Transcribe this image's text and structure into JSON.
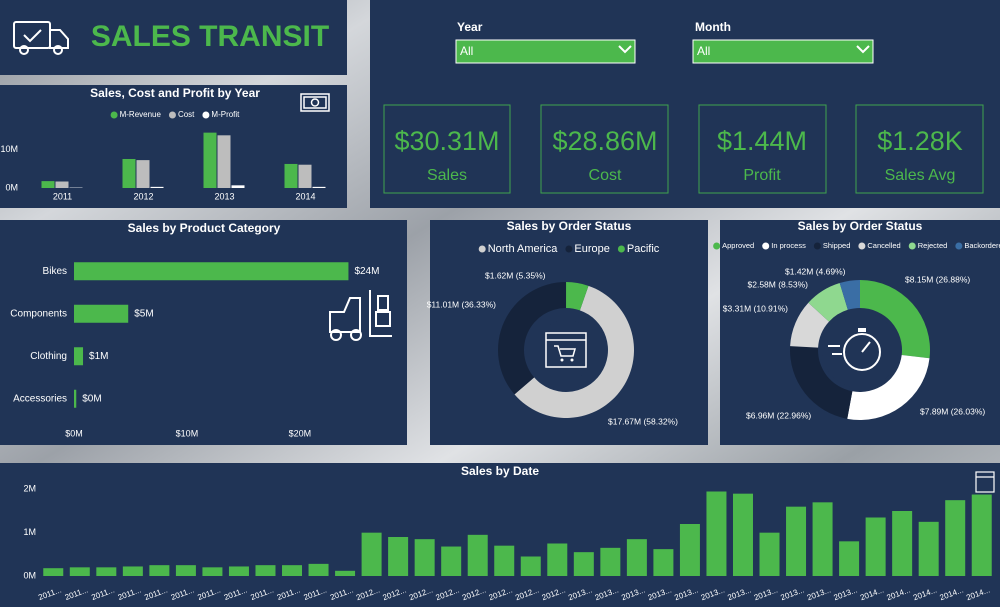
{
  "header": {
    "title": "SALES TRANSIT"
  },
  "filters": [
    {
      "label": "Year",
      "value": "All"
    },
    {
      "label": "Month",
      "value": "All"
    }
  ],
  "kpis": [
    {
      "value": "$30.31M",
      "label": "Sales"
    },
    {
      "value": "$28.86M",
      "label": "Cost"
    },
    {
      "value": "$1.44M",
      "label": "Profit"
    },
    {
      "value": "$1.28K",
      "label": "Sales Avg"
    }
  ],
  "chart_data": [
    {
      "type": "bar",
      "title": "Sales, Cost and Profit by Year",
      "categories": [
        "2011",
        "2012",
        "2013",
        "2014"
      ],
      "series": [
        {
          "name": "M-Revenue",
          "color": "#4cb84c",
          "values": [
            1.8,
            7.6,
            14.5,
            6.3
          ]
        },
        {
          "name": "Cost",
          "color": "#bdbdbd",
          "values": [
            1.7,
            7.3,
            13.8,
            6.1
          ]
        },
        {
          "name": "M-Profit",
          "color": "#ffffff",
          "values": [
            0.1,
            0.3,
            0.7,
            0.3
          ]
        }
      ],
      "ylim": [
        0,
        16.5
      ],
      "yticks": [
        {
          "value": 0,
          "label": "0M"
        },
        {
          "value": 10,
          "label": "10M"
        }
      ],
      "legend": "top"
    },
    {
      "type": "hbar",
      "title": "Sales by Product Category",
      "categories": [
        "Bikes",
        "Components",
        "Clothing",
        "Accessories"
      ],
      "values": [
        24.3,
        4.8,
        0.8,
        0.2
      ],
      "value_labels": [
        "$24M",
        "$5M",
        "$1M",
        "$0M"
      ],
      "color": "#4cb84c",
      "xlim": [
        0,
        25.5
      ],
      "xticks": [
        {
          "value": 0,
          "label": "$0M"
        },
        {
          "value": 10,
          "label": "$10M"
        },
        {
          "value": 20,
          "label": "$20M"
        }
      ]
    },
    {
      "type": "donut",
      "title": "Sales by Order Status",
      "categories": [
        "North America",
        "Europe",
        "Pacific"
      ],
      "values": [
        17.67,
        11.01,
        1.62
      ],
      "value_labels": [
        "$17.67M (58.32%)",
        "$11.01M (36.33%)",
        "$1.62M (5.35%)"
      ],
      "colors": [
        "#d0d0d0",
        "#15233b",
        "#4cb84c"
      ],
      "legend": "top"
    },
    {
      "type": "donut",
      "title": "Sales by Order Status",
      "categories": [
        "Approved",
        "In process",
        "Shipped",
        "Cancelled",
        "Rejected",
        "Backordered"
      ],
      "values": [
        8.15,
        7.89,
        6.96,
        3.31,
        2.58,
        1.42
      ],
      "value_labels": [
        "$8.15M (26.88%)",
        "$7.89M (26.03%)",
        "$6.96M (22.96%)",
        "$3.31M (10.91%)",
        "$2.58M (8.53%)",
        "$1.42M (4.69%)"
      ],
      "colors": [
        "#4cb84c",
        "#ffffff",
        "#15233b",
        "#d8d8d8",
        "#8fd88f",
        "#3a6ea5"
      ],
      "legend": "top"
    },
    {
      "type": "bar",
      "title": "Sales by Date",
      "categories": [
        "2011...",
        "2011...",
        "2011...",
        "2011...",
        "2011...",
        "2011...",
        "2011...",
        "2011...",
        "2011...",
        "2011...",
        "2011...",
        "2011...",
        "2012...",
        "2012...",
        "2012...",
        "2012...",
        "2012...",
        "2012...",
        "2012...",
        "2012...",
        "2013...",
        "2013...",
        "2013...",
        "2013...",
        "2013...",
        "2013...",
        "2013...",
        "2013...",
        "2013...",
        "2013...",
        "2013...",
        "2014...",
        "2014...",
        "2014...",
        "2014...",
        "2014..."
      ],
      "values": [
        0.18,
        0.2,
        0.2,
        0.22,
        0.25,
        0.25,
        0.2,
        0.22,
        0.25,
        0.25,
        0.28,
        0.12,
        1.0,
        0.9,
        0.85,
        0.68,
        0.95,
        0.7,
        0.45,
        0.75,
        0.55,
        0.65,
        0.85,
        0.62,
        1.2,
        1.95,
        1.9,
        1.0,
        1.6,
        1.7,
        0.8,
        1.35,
        1.5,
        1.25,
        1.75,
        1.88
      ],
      "color": "#4cb84c",
      "ylim": [
        0,
        2.1
      ],
      "yticks": [
        {
          "value": 0,
          "label": "0M"
        },
        {
          "value": 1,
          "label": "1M"
        },
        {
          "value": 2,
          "label": "2M"
        }
      ]
    }
  ]
}
